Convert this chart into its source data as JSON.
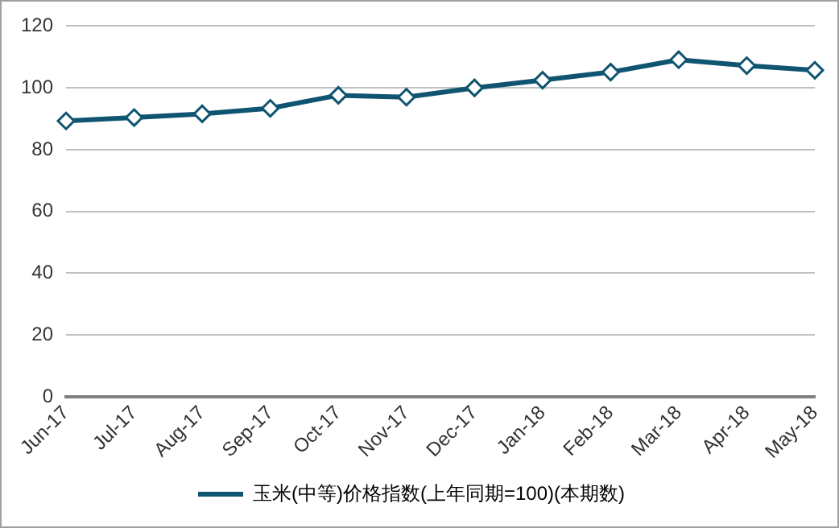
{
  "chart_data": {
    "type": "line",
    "categories": [
      "Jun-17",
      "Jul-17",
      "Aug-17",
      "Sep-17",
      "Oct-17",
      "Nov-17",
      "Dec-17",
      "Jan-18",
      "Feb-18",
      "Mar-18",
      "Apr-18",
      "May-18"
    ],
    "series": [
      {
        "name": "玉米(中等)价格指数(上年同期=100)(本期数)",
        "color": "#0f5470",
        "values": [
          89.3,
          90.4,
          91.6,
          93.4,
          97.6,
          97.0,
          100.0,
          102.5,
          105.1,
          109.1,
          107.2,
          105.7
        ]
      }
    ],
    "ylim": [
      0,
      120
    ],
    "yticks": [
      0,
      20,
      40,
      60,
      80,
      100,
      120
    ],
    "grid": "y",
    "legend": "bottom",
    "marker": "diamond",
    "line_style": "solid"
  }
}
